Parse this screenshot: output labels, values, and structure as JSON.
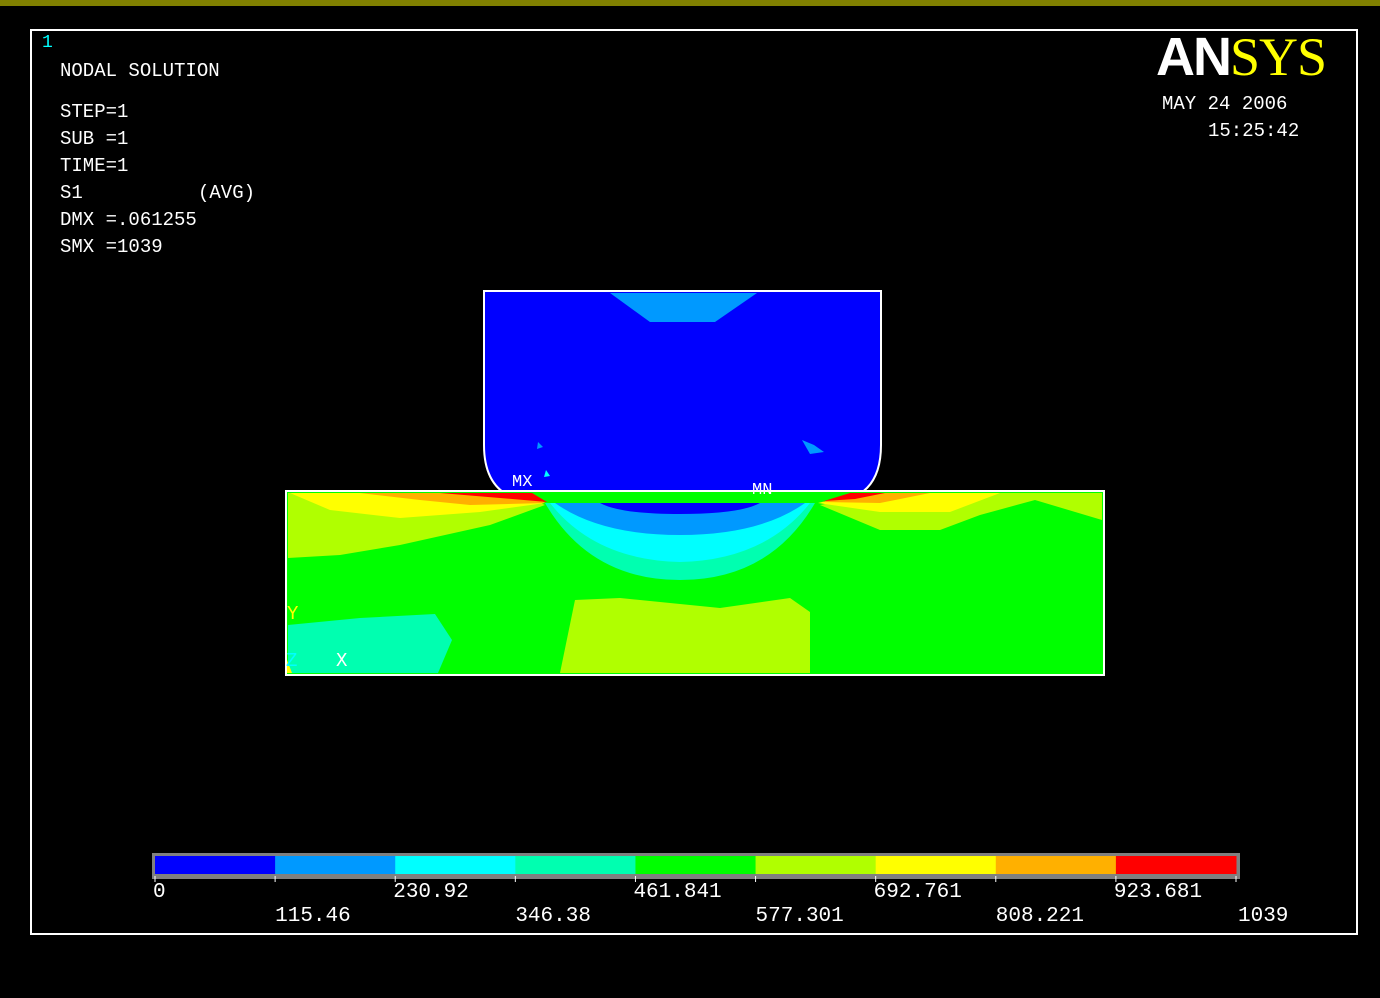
{
  "window_number": "1",
  "header": {
    "title": "NODAL SOLUTION",
    "step": "STEP=1",
    "sub": "SUB =1",
    "time": "TIME=1",
    "item": "S1",
    "avg": "(AVG)",
    "dmx": "DMX =.061255",
    "smx": "SMX =1039"
  },
  "logo": {
    "part1": "AN",
    "part2": "SYS"
  },
  "date": "MAY 24 2006",
  "clock": "15:25:42",
  "markers": {
    "max": "MX",
    "min": "MN"
  },
  "triad": {
    "y": "Y",
    "z": "Z",
    "x": "X"
  },
  "legend": {
    "labels_upper": [
      "0",
      "230.92",
      "461.841",
      "692.761",
      "923.681"
    ],
    "labels_lower": [
      "115.46",
      "346.38",
      "577.301",
      "808.221",
      "1039"
    ],
    "values": [
      0,
      115.46,
      230.92,
      346.38,
      461.841,
      577.301,
      692.761,
      808.221,
      923.681,
      1039
    ],
    "colors": [
      "#0000ff",
      "#0099ff",
      "#00ffff",
      "#00ffb0",
      "#00ff00",
      "#b0ff00",
      "#ffff00",
      "#ffb000",
      "#ff0000"
    ]
  },
  "colors": {
    "background": "#000000",
    "top_bar": "#808000",
    "frame": "#ffffff",
    "logo_accent": "#ffff00",
    "window_number": "#00ffff",
    "triad_y": "#ffff00",
    "triad_z": "#00ffff"
  }
}
